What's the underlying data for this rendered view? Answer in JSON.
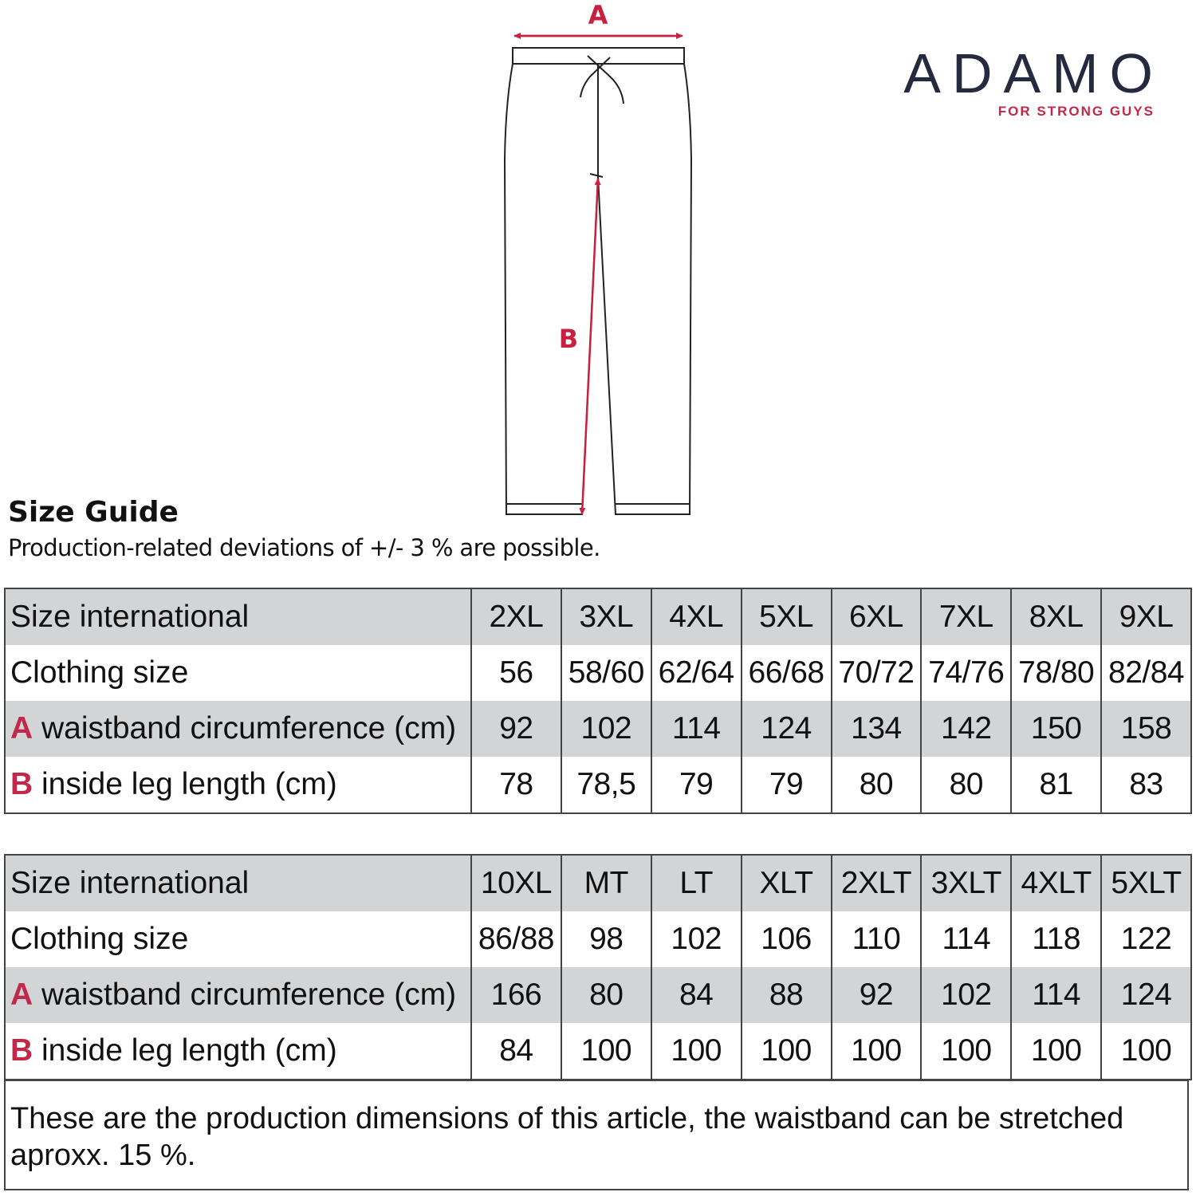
{
  "logo": {
    "name": "ADAMO",
    "tagline": "FOR STRONG GUYS",
    "brand_color": "#262a3f",
    "accent_color": "#c0294a"
  },
  "diagram": {
    "label_a": "A",
    "label_b": "B"
  },
  "title": "Size Guide",
  "subtitle": "Production-related deviations of +/- 3 % are possible.",
  "tables": [
    {
      "rows": [
        {
          "letter": "",
          "label": "Size international",
          "values": [
            "2XL",
            "3XL",
            "4XL",
            "5XL",
            "6XL",
            "7XL",
            "8XL",
            "9XL"
          ]
        },
        {
          "letter": "",
          "label": "Clothing size",
          "values": [
            "56",
            "58/60",
            "62/64",
            "66/68",
            "70/72",
            "74/76",
            "78/80",
            "82/84"
          ]
        },
        {
          "letter": "A",
          "label": " waistband circumference (cm)",
          "values": [
            "92",
            "102",
            "114",
            "124",
            "134",
            "142",
            "150",
            "158"
          ]
        },
        {
          "letter": "B",
          "label": " inside leg length (cm)",
          "values": [
            "78",
            "78,5",
            "79",
            "79",
            "80",
            "80",
            "81",
            "83"
          ]
        }
      ]
    },
    {
      "rows": [
        {
          "letter": "",
          "label": "Size international",
          "values": [
            "10XL",
            "MT",
            "LT",
            "XLT",
            "2XLT",
            "3XLT",
            "4XLT",
            "5XLT"
          ]
        },
        {
          "letter": "",
          "label": "Clothing size",
          "values": [
            "86/88",
            "98",
            "102",
            "106",
            "110",
            "114",
            "118",
            "122"
          ]
        },
        {
          "letter": "A",
          "label": " waistband circumference (cm)",
          "values": [
            "166",
            "80",
            "84",
            "88",
            "92",
            "102",
            "114",
            "124"
          ]
        },
        {
          "letter": "B",
          "label": " inside leg length (cm)",
          "values": [
            "84",
            "100",
            "100",
            "100",
            "100",
            "100",
            "100",
            "100"
          ]
        }
      ]
    }
  ],
  "footnote": "These are the production dimensions of this article, the waistband can be stretched aproxx. 15 %."
}
